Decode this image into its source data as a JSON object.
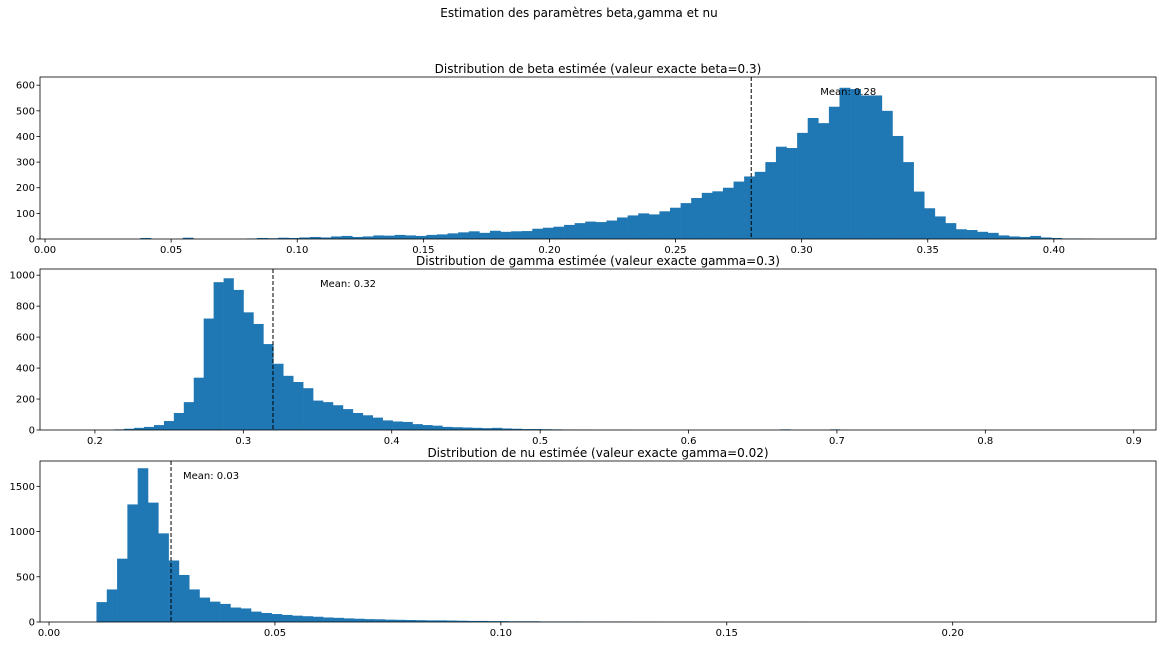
{
  "figure": {
    "suptitle": "Estimation des paramètres beta,gamma et nu"
  },
  "colors": {
    "bar": "#1f77b4",
    "mean_line": "#000000",
    "axis": "#000000",
    "background": "#ffffff"
  },
  "chart_data": [
    {
      "type": "bar",
      "title": "Distribution de beta estimée (valeur exacte beta=0.3)",
      "xlabel": "",
      "ylabel": "",
      "xlim": [
        -0.002,
        0.4405
      ],
      "ylim": [
        0,
        632
      ],
      "xticks": [
        0.0,
        0.05,
        0.1,
        0.15,
        0.2,
        0.25,
        0.3,
        0.35,
        0.4
      ],
      "xtick_labels": [
        "0.00",
        "0.05",
        "0.10",
        "0.15",
        "0.20",
        "0.25",
        "0.30",
        "0.35",
        "0.40"
      ],
      "yticks": [
        0,
        100,
        200,
        300,
        400,
        500,
        600
      ],
      "ytick_labels": [
        "0",
        "100",
        "200",
        "300",
        "400",
        "500",
        "600"
      ],
      "bin_start": 0.0,
      "bin_width": 0.0042,
      "values": [
        0,
        0,
        0,
        0,
        0,
        0,
        0,
        0,
        0,
        4,
        0,
        0,
        0,
        5,
        0,
        0,
        0,
        0,
        0,
        2,
        4,
        3,
        5,
        4,
        6,
        8,
        6,
        10,
        12,
        8,
        10,
        14,
        13,
        16,
        14,
        12,
        16,
        18,
        22,
        26,
        30,
        24,
        32,
        28,
        30,
        31,
        40,
        44,
        48,
        55,
        62,
        68,
        66,
        72,
        84,
        92,
        100,
        96,
        108,
        122,
        140,
        160,
        180,
        186,
        200,
        224,
        244,
        262,
        300,
        360,
        355,
        414,
        472,
        452,
        516,
        590,
        585,
        560,
        560,
        500,
        402,
        300,
        185,
        120,
        88,
        62,
        38,
        35,
        28,
        24,
        14,
        10,
        8,
        12,
        6,
        4,
        2,
        2,
        1,
        0,
        0,
        0,
        0,
        0,
        0,
        0
      ],
      "mean": 0.28,
      "mean_label": "Mean: 0.28",
      "grid": false
    },
    {
      "type": "bar",
      "title": "Distribution de gamma estimée (valeur exacte gamma=0.3)",
      "xlabel": "",
      "ylabel": "",
      "xlim": [
        0.163,
        0.915
      ],
      "ylim": [
        0,
        1040
      ],
      "xticks": [
        0.2,
        0.3,
        0.4,
        0.5,
        0.6,
        0.7,
        0.8,
        0.9
      ],
      "xtick_labels": [
        "0.2",
        "0.3",
        "0.4",
        "0.5",
        "0.6",
        "0.7",
        "0.8",
        "0.9"
      ],
      "yticks": [
        0,
        200,
        400,
        600,
        800,
        1000
      ],
      "ytick_labels": [
        "0",
        "200",
        "400",
        "600",
        "800",
        "1000"
      ],
      "bin_start": 0.213,
      "bin_width": 0.0067,
      "values": [
        4,
        8,
        14,
        20,
        32,
        58,
        110,
        180,
        338,
        720,
        955,
        980,
        905,
        760,
        685,
        555,
        428,
        350,
        310,
        270,
        190,
        180,
        160,
        135,
        110,
        95,
        80,
        62,
        55,
        52,
        38,
        32,
        28,
        20,
        18,
        16,
        14,
        12,
        14,
        10,
        8,
        6,
        6,
        5,
        4,
        3,
        2,
        2,
        1,
        1,
        1,
        1,
        0,
        0,
        0,
        0,
        0,
        0,
        0,
        0,
        0,
        0,
        0,
        0,
        0,
        0,
        0,
        4,
        0,
        0,
        0,
        0,
        4,
        0,
        0,
        0,
        0,
        0,
        0,
        0,
        0,
        0,
        0,
        0,
        0,
        0,
        0,
        0,
        0,
        0,
        0,
        0,
        0,
        0,
        0,
        0,
        0,
        0,
        0,
        0,
        0,
        0,
        0,
        0,
        0,
        0
      ],
      "mean": 0.32,
      "mean_label": "Mean: 0.32",
      "grid": false
    },
    {
      "type": "bar",
      "title": "Distribution de nu estimée (valeur exacte gamma=0.02)",
      "xlabel": "",
      "ylabel": "",
      "xlim": [
        -0.002,
        0.245
      ],
      "ylim": [
        0,
        1780
      ],
      "xticks": [
        0.0,
        0.05,
        0.1,
        0.15,
        0.2
      ],
      "xtick_labels": [
        "0.00",
        "0.05",
        "0.10",
        "0.15",
        "0.20"
      ],
      "yticks": [
        0,
        500,
        1000,
        1500
      ],
      "ytick_labels": [
        "0",
        "500",
        "1000",
        "1500"
      ],
      "bin_start": 0.0105,
      "bin_width": 0.00228,
      "values": [
        220,
        360,
        700,
        1300,
        1700,
        1320,
        980,
        680,
        520,
        360,
        270,
        225,
        200,
        160,
        150,
        115,
        100,
        88,
        78,
        70,
        64,
        58,
        50,
        46,
        40,
        36,
        32,
        30,
        26,
        24,
        22,
        20,
        18,
        18,
        16,
        14,
        12,
        12,
        10,
        10,
        8,
        8,
        8,
        6,
        6,
        6,
        6,
        5,
        5,
        4,
        4,
        4,
        3,
        3,
        3,
        2,
        2,
        2,
        2,
        2,
        2,
        1,
        1,
        1,
        1,
        1,
        1,
        1,
        1,
        0,
        0,
        0,
        0,
        0,
        0,
        0,
        0,
        0,
        0,
        0,
        0,
        0,
        0,
        0,
        0,
        0,
        0,
        0,
        0,
        0,
        0,
        0,
        0,
        0,
        0,
        0,
        0,
        0,
        0,
        0
      ],
      "mean": 0.027,
      "mean_label": "Mean: 0.03",
      "grid": false
    }
  ]
}
